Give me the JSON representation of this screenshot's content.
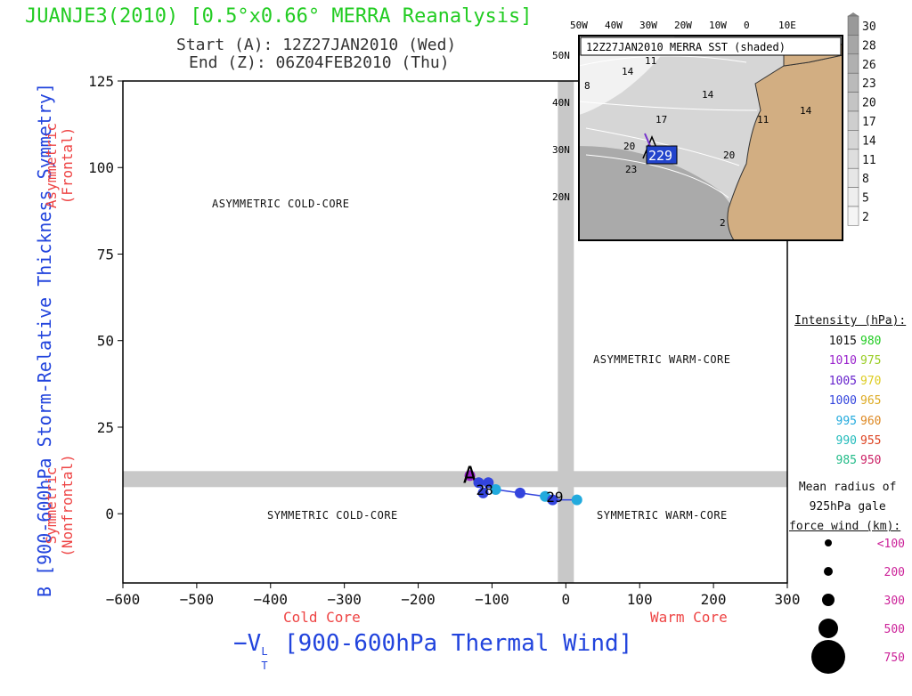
{
  "header": {
    "title": "JUANJE3(2010) [0.5°x0.66° MERRA Reanalysis]",
    "start": "Start (A): 12Z27JAN2010 (Wed)",
    "end": "End (Z): 06Z04FEB2010 (Thu)"
  },
  "chart_data": {
    "type": "scatter",
    "xlabel": "-V_T^L [900-600hPa Thermal Wind]",
    "xlabel_main": "−V",
    "xlabel_sup": "L",
    "xlabel_sub": "T",
    "xlabel_rest": " [900-600hPa Thermal Wind]",
    "ylabel": "B [900-600hPa Storm-Relative Thickness Symmetry]",
    "xlim": [
      -600,
      300
    ],
    "ylim": [
      -20,
      125
    ],
    "xticks": [
      -600,
      -500,
      -400,
      -300,
      -200,
      -100,
      0,
      100,
      200,
      300
    ],
    "yticks": [
      0,
      25,
      50,
      75,
      100,
      125
    ],
    "x_axis_notes": {
      "left": "Cold Core",
      "right": "Warm Core"
    },
    "y_axis_notes": {
      "top_main": "Asymmetric",
      "top_sub": "(Frontal)",
      "bottom_main": "Symmetric",
      "bottom_sub": "(Nonfrontal)"
    },
    "quadrants": {
      "top_left": "ASYMMETRIC COLD-CORE",
      "top_right": "ASYMMETRIC WARM-CORE",
      "bottom_left": "SYMMETRIC COLD-CORE",
      "bottom_right": "SYMMETRIC WARM-CORE"
    },
    "threshold_lines": {
      "x": 0,
      "y": 10
    },
    "track": [
      {
        "x": -130,
        "y": 11,
        "color": "#9922cc",
        "marker": "A"
      },
      {
        "x": -118,
        "y": 9,
        "color": "#3344dd"
      },
      {
        "x": -112,
        "y": 6,
        "color": "#3344dd"
      },
      {
        "x": -105,
        "y": 9,
        "color": "#3344dd"
      },
      {
        "x": -95,
        "y": 7,
        "color": "#22aadd"
      },
      {
        "x": -62,
        "y": 6,
        "color": "#3344dd"
      },
      {
        "x": -28,
        "y": 5,
        "color": "#22aadd"
      },
      {
        "x": -18,
        "y": 4,
        "color": "#3344dd"
      },
      {
        "x": 15,
        "y": 4,
        "color": "#22aadd"
      }
    ],
    "day_labels": [
      {
        "x": -110,
        "y": 7,
        "text": "28"
      },
      {
        "x": -15,
        "y": 5,
        "text": "29"
      }
    ]
  },
  "inset": {
    "title": "12Z27JAN2010 MERRA SST (shaded)",
    "lon_labels": [
      "50W",
      "40W",
      "30W",
      "20W",
      "10W",
      "0",
      "10E"
    ],
    "lat_labels": [
      "50N",
      "40N",
      "30N",
      "20N"
    ],
    "contour_labels": [
      "11",
      "14",
      "8",
      "14",
      "17",
      "11",
      "14",
      "20",
      "20",
      "23",
      "2"
    ],
    "track_label": "229",
    "track_start": "A",
    "colorbar_values": [
      "30",
      "28",
      "26",
      "23",
      "20",
      "17",
      "14",
      "11",
      "8",
      "5",
      "2"
    ]
  },
  "legend": {
    "intensity_title": "Intensity (hPa):",
    "intensity": [
      {
        "a": "1015",
        "ca": "#111111",
        "b": "980",
        "cb": "#22cc22"
      },
      {
        "a": "1010",
        "ca": "#9922cc",
        "b": "975",
        "cb": "#99cc22"
      },
      {
        "a": "1005",
        "ca": "#6622cc",
        "b": "970",
        "cb": "#ddcc22"
      },
      {
        "a": "1000",
        "ca": "#3344dd",
        "b": "965",
        "cb": "#ddaa22"
      },
      {
        "a": "995",
        "ca": "#22aadd",
        "b": "960",
        "cb": "#dd8822"
      },
      {
        "a": "990",
        "ca": "#22bbbb",
        "b": "955",
        "cb": "#dd4422"
      },
      {
        "a": "985",
        "ca": "#22bb88",
        "b": "950",
        "cb": "#cc2266"
      }
    ],
    "radius_title": [
      "Mean radius of",
      "925hPa gale",
      "force wind (km):"
    ],
    "radius": [
      "<100",
      "200",
      "300",
      "500",
      "750"
    ]
  }
}
